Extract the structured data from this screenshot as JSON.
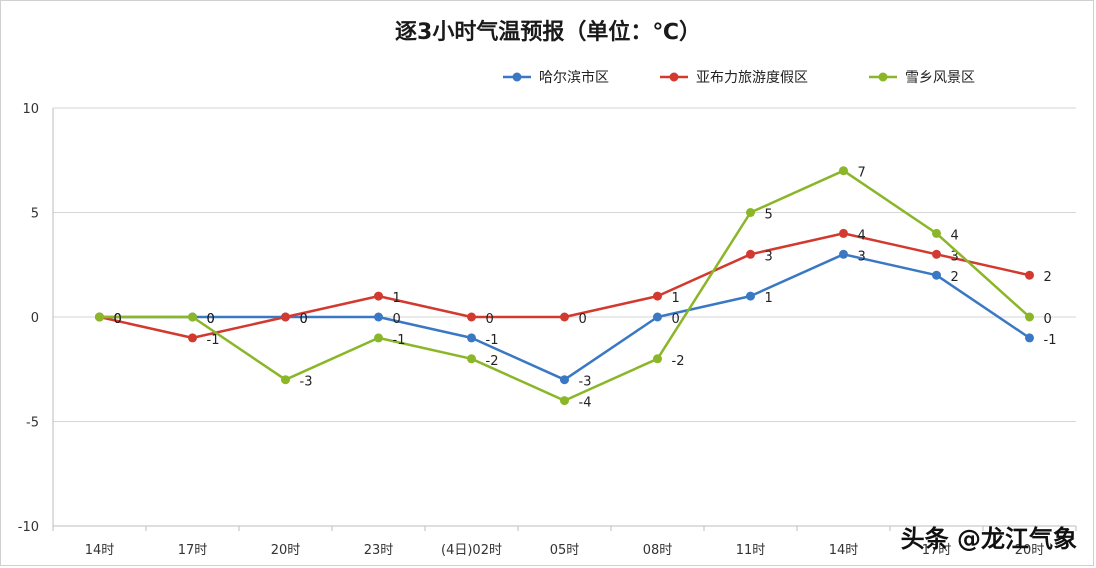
{
  "chart_data": {
    "type": "line",
    "title": "逐3小时气温预报（单位：℃）",
    "categories": [
      "14时",
      "17时",
      "20时",
      "23时",
      "(4日)02时",
      "05时",
      "08时",
      "11时",
      "14时",
      "17时",
      "20时"
    ],
    "ylim": [
      -10,
      10
    ],
    "yticks": [
      -10,
      -5,
      0,
      5,
      10
    ],
    "grid": true,
    "legend_position": "top-right",
    "series": [
      {
        "name": "哈尔滨市区",
        "color": "#3b78c4",
        "values": [
          0,
          0,
          0,
          0,
          -1,
          -3,
          0,
          1,
          3,
          2,
          -1
        ]
      },
      {
        "name": "亚布力旅游度假区",
        "color": "#d23a2f",
        "values": [
          0,
          -1,
          0,
          1,
          0,
          0,
          1,
          3,
          4,
          3,
          2
        ]
      },
      {
        "name": "雪乡风景区",
        "color": "#8ab628",
        "values": [
          0,
          0,
          -3,
          -1,
          -2,
          -4,
          -2,
          5,
          7,
          4,
          0
        ]
      }
    ]
  },
  "watermark": "头条 @龙江气象"
}
